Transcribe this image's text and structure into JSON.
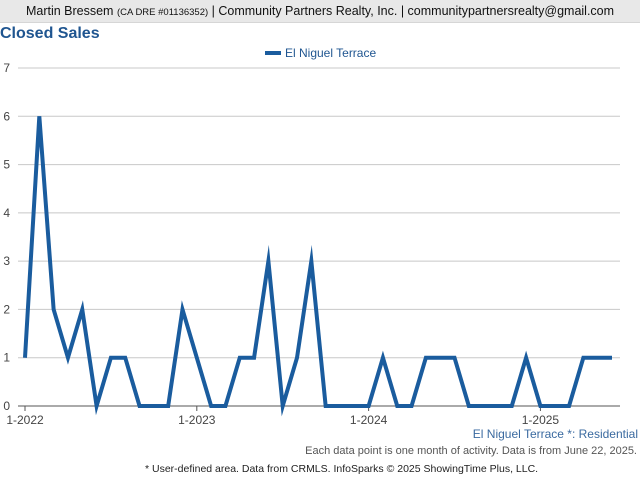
{
  "header": {
    "agent_name": "Martin Bressem",
    "license": "(CA DRE #01136352)",
    "company": "| Community Partners Realty, Inc. | communitypartnersrealty@gmail.com"
  },
  "chart_data": {
    "type": "line",
    "title": "Closed Sales",
    "xlabel": "",
    "ylabel": "",
    "ylim": [
      0,
      7
    ],
    "yticks": [
      "0",
      "1",
      "2",
      "3",
      "4",
      "5",
      "6",
      "7"
    ],
    "x_ticks": [
      "1-2022",
      "1-2023",
      "1-2024",
      "1-2025"
    ],
    "grid": true,
    "legend_position": "top-center",
    "x": [
      "1-2022",
      "2-2022",
      "3-2022",
      "4-2022",
      "5-2022",
      "6-2022",
      "7-2022",
      "8-2022",
      "9-2022",
      "10-2022",
      "11-2022",
      "12-2022",
      "1-2023",
      "2-2023",
      "3-2023",
      "4-2023",
      "5-2023",
      "6-2023",
      "7-2023",
      "8-2023",
      "9-2023",
      "10-2023",
      "11-2023",
      "12-2023",
      "1-2024",
      "2-2024",
      "3-2024",
      "4-2024",
      "5-2024",
      "6-2024",
      "7-2024",
      "8-2024",
      "9-2024",
      "10-2024",
      "11-2024",
      "12-2024",
      "1-2025",
      "2-2025",
      "3-2025",
      "4-2025",
      "5-2025",
      "6-2025"
    ],
    "series": [
      {
        "name": "El Niguel Terrace",
        "color": "#1a5c9e",
        "values": [
          1,
          6,
          2,
          1,
          2,
          0,
          1,
          1,
          0,
          0,
          0,
          2,
          1,
          0,
          0,
          1,
          1,
          3,
          0,
          1,
          3,
          0,
          0,
          0,
          0,
          1,
          0,
          0,
          1,
          1,
          1,
          0,
          0,
          0,
          0,
          1,
          0,
          0,
          0,
          1,
          1,
          1
        ]
      }
    ],
    "area_label": "El Niguel Terrace *: Residential",
    "note": "Each data point is one month of activity. Data is from June 22, 2025.",
    "footer": "* User-defined area. Data from CRMLS. InfoSparks © 2025 ShowingTime Plus, LLC."
  }
}
